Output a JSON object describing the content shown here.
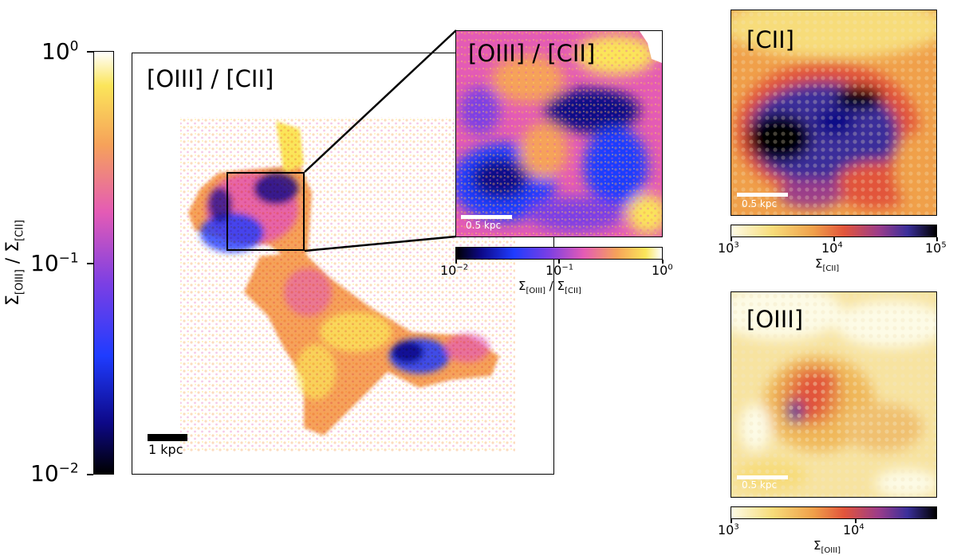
{
  "main_colorbar": {
    "label_prefix": "Σ",
    "label_sub1": "[OIII]",
    "label_mid": " / Σ",
    "label_sub2": "[CII]",
    "ticks": [
      {
        "base": "10",
        "exp": "0"
      },
      {
        "base": "10",
        "exp": "−1"
      },
      {
        "base": "10",
        "exp": "−2"
      }
    ],
    "range": [
      0.01,
      1
    ],
    "colormap": "plasma-like"
  },
  "main_panel": {
    "title": "[OIII] / [CII]",
    "scale_label": "1 kpc"
  },
  "zoom_panel": {
    "title": "[OIII] / [CII]",
    "scale_label": "0.5 kpc",
    "colorbar": {
      "ticks": [
        {
          "base": "10",
          "exp": "−2"
        },
        {
          "base": "10",
          "exp": "−1"
        },
        {
          "base": "10",
          "exp": "0"
        }
      ],
      "label_prefix": "Σ",
      "label_sub1": "[OIII]",
      "label_mid": " / Σ",
      "label_sub2": "[CII]"
    }
  },
  "cii_panel": {
    "title": "[CII]",
    "scale_label": "0.5 kpc",
    "colorbar": {
      "ticks": [
        {
          "base": "10",
          "exp": "3"
        },
        {
          "base": "10",
          "exp": "4"
        },
        {
          "base": "10",
          "exp": "5"
        }
      ],
      "label_prefix": "Σ",
      "label_sub": "[CII]",
      "range": [
        1000,
        100000
      ]
    }
  },
  "oiii_panel": {
    "title": "[OIII]",
    "scale_label": "0.5 kpc",
    "colorbar": {
      "ticks": [
        {
          "base": "10",
          "exp": "3"
        },
        {
          "base": "10",
          "exp": "4"
        }
      ],
      "label_prefix": "Σ",
      "label_sub": "[OIII]"
    }
  }
}
